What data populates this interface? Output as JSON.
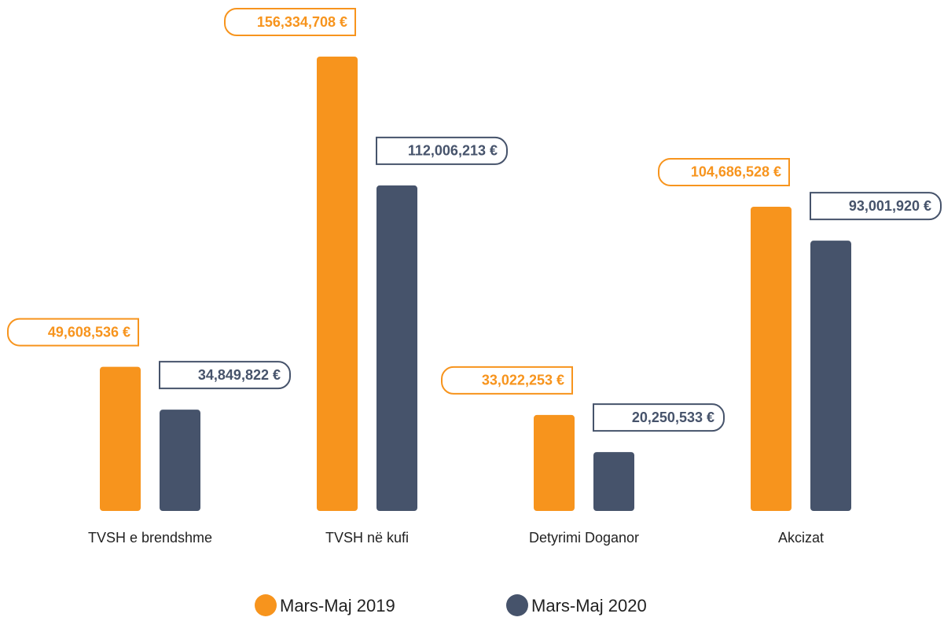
{
  "chart_data": {
    "type": "bar",
    "categories": [
      "TVSH e brendshme",
      "TVSH në kufi",
      "Detyrimi Doganor",
      "Akcizat"
    ],
    "series": [
      {
        "name": "Mars-Maj 2019",
        "color": "#f7941d",
        "values": [
          49608536,
          156334708,
          33022253,
          104686528
        ],
        "value_labels": [
          "49,608,536 €",
          "156,334,708 €",
          "33,022,253 €",
          "104,686,528 €"
        ]
      },
      {
        "name": "Mars-Maj 2020",
        "color": "#46536b",
        "values": [
          34849822,
          112006213,
          20250533,
          93001920
        ],
        "value_labels": [
          "34,849,822 €",
          "112,006,213 €",
          "20,250,533 €",
          "93,001,920 €"
        ]
      }
    ]
  }
}
